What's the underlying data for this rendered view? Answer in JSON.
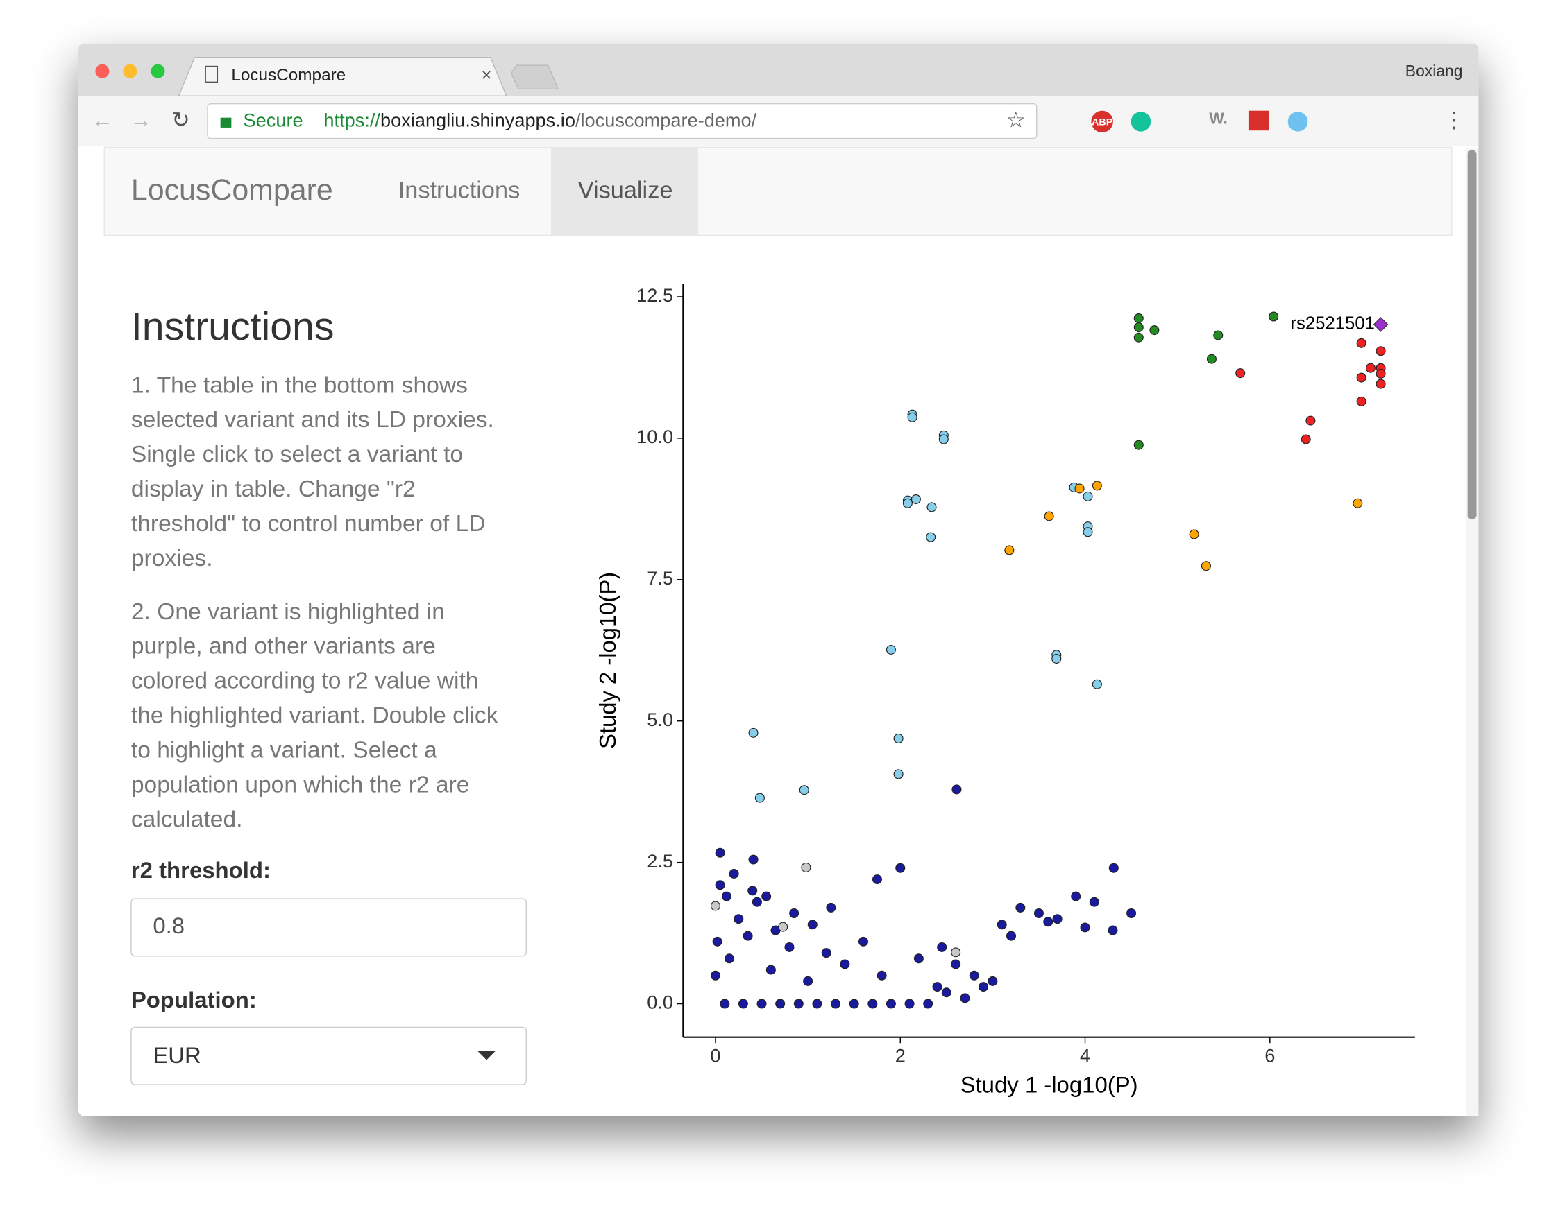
{
  "browser": {
    "tab_title": "LocusCompare",
    "profile": "Boxiang",
    "secure": "Secure",
    "url_scheme": "https://",
    "url_host": "boxiangliu.shinyapps.io",
    "url_path": "/locuscompare-demo/",
    "extensions": [
      "ABP",
      "W."
    ]
  },
  "navbar": {
    "brand": "LocusCompare",
    "items": [
      "Instructions",
      "Visualize"
    ]
  },
  "sidebar": {
    "heading": "Instructions",
    "paragraph_1": [
      "1. The table in the bottom shows",
      "selected variant and its LD proxies.",
      "Single click to select a variant to",
      "display in table. Change \"r2",
      "threshold\" to control number of LD",
      "proxies."
    ],
    "paragraph_2": [
      "2. One variant is highlighted in",
      "purple, and other variants are",
      "colored according to r2 value with",
      "the highlighted variant. Double click",
      "to highlight a variant. Select a",
      "population upon which the r2 are",
      "calculated."
    ],
    "r2_label": "r2 threshold:",
    "r2_value": "0.8",
    "population_label": "Population:",
    "population_value": "EUR"
  },
  "chart_data": {
    "type": "scatter",
    "x_label": "Study 1  -log10(P)",
    "y_label": "Study 2  -log10(P)",
    "annotation": "rs2521501",
    "xlim": [
      -0.35,
      7.57
    ],
    "ylim": [
      -0.59,
      12.73
    ],
    "xticks": [
      0,
      2,
      4,
      6
    ],
    "yticks": [
      {
        "value": 0,
        "label": "0.0"
      },
      2.5,
      {
        "value": 5,
        "label": "5.0"
      },
      7.5,
      {
        "value": 10,
        "label": "10.0"
      },
      12.5
    ],
    "series": [
      {
        "color": "#1a1a9c",
        "x": [
          0.05,
          0.41,
          2.0,
          4.31,
          0.1,
          0.3,
          0.5,
          0.7,
          0.9,
          1.1,
          1.3,
          1.5,
          1.7,
          1.9,
          2.1,
          2.3,
          2.5,
          2.7,
          2.9,
          0.0,
          0.15,
          0.35,
          0.6,
          0.8,
          1.0,
          1.2,
          1.4,
          1.6,
          1.8,
          2.2,
          2.4,
          2.6,
          2.8,
          3.0,
          0.25,
          0.45,
          0.65,
          0.85,
          1.05,
          1.25,
          0.05,
          0.2,
          0.4,
          0.55,
          3.1,
          3.3,
          3.5,
          3.7,
          3.9,
          4.1,
          4.3,
          4.5,
          3.2,
          3.6,
          4.0,
          1.75,
          2.45,
          0.02,
          0.12,
          2.61
        ],
        "values": [
          2.67,
          2.55,
          2.4,
          2.4,
          0,
          0,
          0,
          0,
          0,
          0,
          0,
          0,
          0,
          0,
          0,
          0,
          0.2,
          0.1,
          0.3,
          0.5,
          0.8,
          1.2,
          0.6,
          1.0,
          0.4,
          0.9,
          0.7,
          1.1,
          0.5,
          0.8,
          0.3,
          0.7,
          0.5,
          0.4,
          1.5,
          1.8,
          1.3,
          1.6,
          1.4,
          1.7,
          2.1,
          2.3,
          2.0,
          1.9,
          1.4,
          1.7,
          1.6,
          1.5,
          1.9,
          1.8,
          1.3,
          1.6,
          1.2,
          1.45,
          1.35,
          2.2,
          1.0,
          1.1,
          1.9,
          3.79
        ]
      },
      {
        "color": "#c8c8c8",
        "x": [
          0.98,
          0.0,
          0.73,
          2.6
        ],
        "values": [
          2.41,
          1.73,
          1.36,
          0.91
        ]
      },
      {
        "color": "#87ceeb",
        "x": [
          2.13,
          2.13,
          2.47,
          2.47,
          2.08,
          2.08,
          2.17,
          2.34,
          2.33,
          3.88,
          4.03,
          4.03,
          4.03,
          1.9,
          3.69,
          3.69,
          4.13,
          0.41,
          1.98,
          0.48,
          0.96,
          1.98
        ],
        "values": [
          10.42,
          10.37,
          10.05,
          9.98,
          8.9,
          8.85,
          8.92,
          8.78,
          8.25,
          9.13,
          8.97,
          8.44,
          8.34,
          6.26,
          6.17,
          6.1,
          5.65,
          4.79,
          4.69,
          3.64,
          3.78,
          4.06
        ]
      },
      {
        "color": "#ffa500",
        "x": [
          4.13,
          3.94,
          3.61,
          3.18,
          5.18,
          5.31,
          6.95
        ],
        "values": [
          9.16,
          9.11,
          8.62,
          8.02,
          8.3,
          7.74,
          8.85
        ]
      },
      {
        "color": "#228b22",
        "x": [
          4.58,
          4.58,
          4.58,
          4.75,
          5.44,
          6.04,
          5.37,
          4.58
        ],
        "values": [
          12.12,
          11.96,
          11.78,
          11.91,
          11.82,
          12.15,
          11.4,
          9.88
        ]
      },
      {
        "color": "#ee2222",
        "x": [
          6.99,
          7.2,
          5.68,
          7.09,
          7.2,
          6.99,
          7.2,
          7.2,
          6.99,
          6.44,
          6.39
        ],
        "values": [
          11.68,
          11.54,
          11.15,
          11.24,
          11.24,
          11.07,
          11.14,
          10.96,
          10.65,
          10.31,
          9.98
        ]
      },
      {
        "color": "#9932cc",
        "marker": "diamond",
        "x": [
          7.2
        ],
        "values": [
          12.01
        ]
      }
    ]
  }
}
